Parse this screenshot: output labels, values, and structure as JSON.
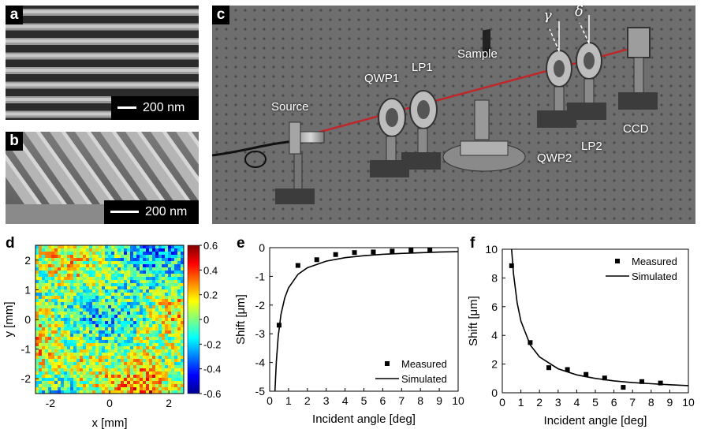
{
  "panels": {
    "a": {
      "label": "a",
      "scale": "200 nm"
    },
    "b": {
      "label": "b",
      "scale": "200 nm"
    },
    "c": {
      "label": "c",
      "components": {
        "source": "Source",
        "qwp1": "QWP1",
        "lp1": "LP1",
        "sample": "Sample",
        "qwp2": "QWP2",
        "lp2": "LP2",
        "ccd": "CCD",
        "gamma": "γ",
        "delta": "δ"
      }
    },
    "d": {
      "label": "d",
      "xlabel": "x [mm]",
      "ylabel": "y [mm]",
      "xticks": [
        "-2",
        "0",
        "2"
      ],
      "yticks": [
        "2",
        "1",
        "0",
        "-1",
        "-2"
      ],
      "colorbar_ticks": [
        "0.6",
        "0.4",
        "0.2",
        "0",
        "-0.2",
        "-0.4",
        "-0.6"
      ]
    },
    "e": {
      "label": "e"
    },
    "f": {
      "label": "f"
    }
  },
  "chart_data": [
    {
      "type": "heatmap",
      "xlabel": "x [mm]",
      "ylabel": "y [mm]",
      "xlim": [
        -2.5,
        2.5
      ],
      "ylim": [
        -2.5,
        2.5
      ],
      "clim": [
        -0.6,
        0.6
      ],
      "colormap": "jet"
    },
    {
      "type": "scatter",
      "xlabel": "Incident angle [deg]",
      "ylabel": "Shift [μm]",
      "xlim": [
        0,
        10
      ],
      "ylim": [
        -5,
        0
      ],
      "xticks": [
        "0",
        "1",
        "2",
        "3",
        "4",
        "5",
        "6",
        "7",
        "8",
        "9",
        "10"
      ],
      "yticks": [
        "0",
        "-1",
        "-2",
        "-3",
        "-4",
        "-5"
      ],
      "legend": [
        "Measured",
        "Simulated"
      ],
      "legend_position": "bottom-right",
      "series": [
        {
          "name": "Measured",
          "x": [
            0.5,
            1.5,
            2.5,
            3.5,
            4.5,
            5.5,
            6.5,
            7.5,
            8.5
          ],
          "y": [
            -2.7,
            -0.62,
            -0.42,
            -0.24,
            -0.17,
            -0.15,
            -0.12,
            -0.09,
            -0.07
          ]
        },
        {
          "name": "Simulated",
          "x": [
            0.28,
            0.35,
            0.45,
            0.6,
            0.8,
            1.0,
            1.5,
            2,
            3,
            4,
            5,
            6,
            7,
            8,
            9,
            10
          ],
          "y": [
            -5.0,
            -4.0,
            -3.1,
            -2.33,
            -1.75,
            -1.4,
            -0.93,
            -0.7,
            -0.47,
            -0.35,
            -0.28,
            -0.23,
            -0.2,
            -0.175,
            -0.155,
            -0.14
          ]
        }
      ]
    },
    {
      "type": "scatter",
      "xlabel": "Incident angle [deg]",
      "ylabel": "Shift [μm]",
      "xlim": [
        0,
        10
      ],
      "ylim": [
        0,
        10
      ],
      "xticks": [
        "0",
        "1",
        "2",
        "3",
        "4",
        "5",
        "6",
        "7",
        "8",
        "9",
        "10"
      ],
      "yticks": [
        "10",
        "8",
        "6",
        "4",
        "2",
        "0"
      ],
      "legend": [
        "Measured",
        "Simulated"
      ],
      "legend_position": "top-right",
      "series": [
        {
          "name": "Measured",
          "x": [
            0.5,
            1.5,
            2.5,
            3.5,
            4.5,
            5.5,
            6.5,
            7.5,
            8.5
          ],
          "y": [
            8.85,
            3.5,
            1.75,
            1.62,
            1.28,
            1.03,
            0.38,
            0.78,
            0.68
          ]
        },
        {
          "name": "Simulated",
          "x": [
            0.5,
            0.6,
            0.8,
            1.0,
            1.5,
            2,
            3,
            4,
            5,
            6,
            7,
            8,
            9,
            10
          ],
          "y": [
            10.0,
            8.3,
            6.25,
            5.0,
            3.33,
            2.5,
            1.67,
            1.25,
            1.0,
            0.83,
            0.71,
            0.63,
            0.56,
            0.5
          ]
        }
      ]
    }
  ]
}
